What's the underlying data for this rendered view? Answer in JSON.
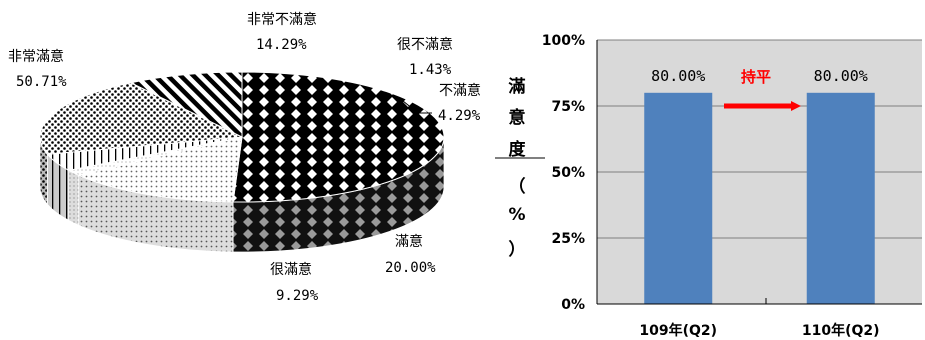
{
  "chart_data": [
    {
      "type": "pie",
      "categories": [
        "非常滿意",
        "非常不滿意",
        "很不滿意",
        "不滿意",
        "滿意",
        "很滿意"
      ],
      "values": [
        50.71,
        14.29,
        1.43,
        4.29,
        20.0,
        9.29
      ],
      "value_labels": [
        "50.71%",
        "14.29%",
        "1.43%",
        "4.29%",
        "20.00%",
        "9.29%"
      ],
      "patterns": [
        "diamond-check",
        "fine-dots",
        "light-dots",
        "vertical-lines",
        "dense-dots",
        "diagonal-stripes"
      ]
    },
    {
      "type": "bar",
      "categories": [
        "109年(Q2)",
        "110年(Q2)"
      ],
      "values": [
        80.0,
        80.0
      ],
      "value_labels": [
        "80.00%",
        "80.00%"
      ],
      "ylabel": "滿意度（%）",
      "ylim": [
        0,
        100
      ],
      "yticks": [
        "0%",
        "25%",
        "50%",
        "75%",
        "100%"
      ],
      "grid": true,
      "annotation": "持平",
      "colors": {
        "bar": "#4f81bd",
        "plot_bg": "#d9d9d9",
        "annotation": "#ff0000"
      }
    }
  ]
}
